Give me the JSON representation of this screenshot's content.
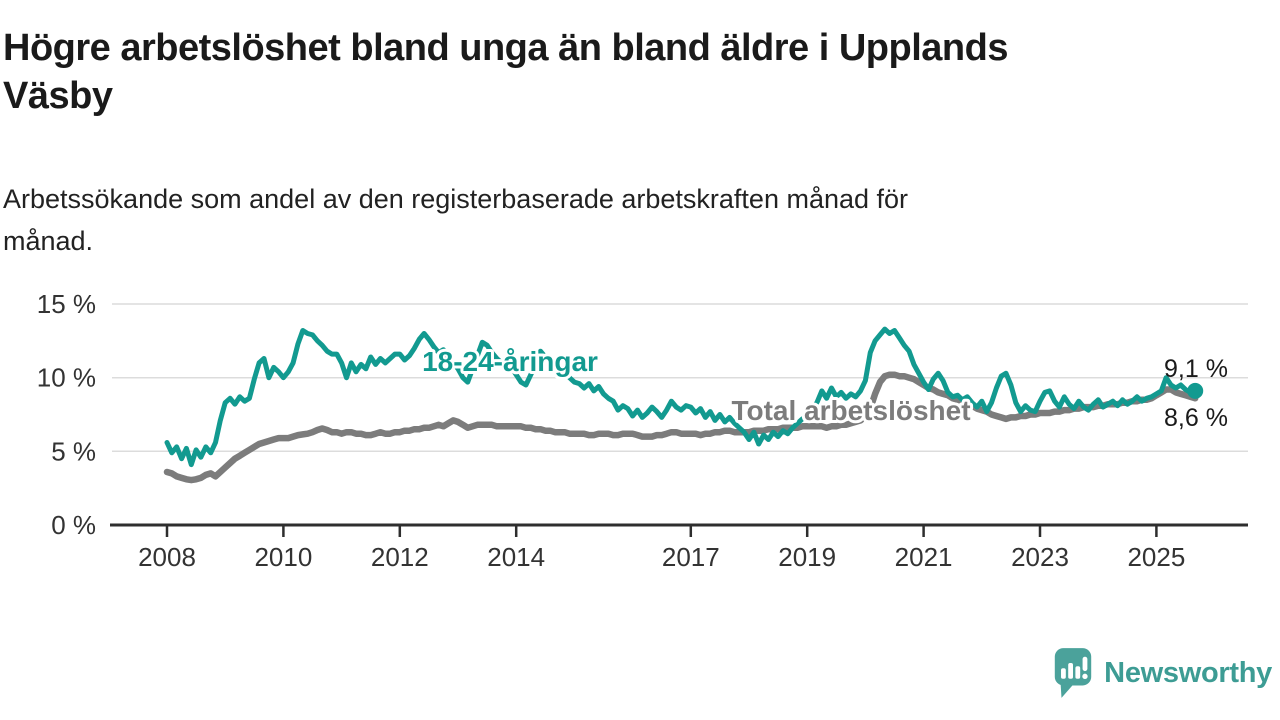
{
  "title_lines": [
    "Högre arbetslöshet bland unga än bland äldre i Upplands",
    "Väsby"
  ],
  "title": "Högre arbetslöshet bland unga än bland äldre i Upplands Väsby",
  "subtitle_lines": [
    "Arbetssökande som andel av den registerbaserade arbetskraften månad för",
    "månad."
  ],
  "branding": {
    "logo_text": "Newsworthy",
    "logo_color": "#3d9c94",
    "icon_color": "#4ba29b"
  },
  "colors": {
    "youth": "#129a90",
    "total": "#7c7c7c",
    "grid": "#dcdcdc",
    "axis": "#2e2e2e",
    "tick_text": "#333333",
    "value_text": "#1a1a1a"
  },
  "chart_data": {
    "type": "line",
    "frequency": "monthly",
    "x_start": "2008-01",
    "x_end": "2025-09",
    "x_tick_labels": [
      "2008",
      "2010",
      "2012",
      "2014",
      "2017",
      "2019",
      "2021",
      "2023",
      "2025"
    ],
    "y_tick_values": [
      0,
      5,
      10,
      15
    ],
    "y_tick_labels": [
      "0 %",
      "5 %",
      "10 %",
      "15 %"
    ],
    "ylim": [
      0,
      15.5
    ],
    "grid": "horizontal",
    "legend": "inline-labels",
    "series": [
      {
        "name": "18-24-åringar",
        "color": "#129a90",
        "end_label": "9,1 %",
        "end_value": 9.1,
        "values": [
          5.6,
          4.9,
          5.3,
          4.5,
          5.2,
          4.1,
          5.1,
          4.6,
          5.3,
          4.9,
          5.6,
          7.1,
          8.3,
          8.6,
          8.2,
          8.7,
          8.4,
          8.6,
          9.9,
          11.0,
          11.3,
          10.0,
          10.7,
          10.4,
          10.0,
          10.4,
          11.0,
          12.3,
          13.2,
          13.0,
          12.9,
          12.5,
          12.2,
          11.8,
          11.6,
          11.6,
          11.0,
          10.0,
          11.0,
          10.4,
          10.9,
          10.6,
          11.4,
          10.9,
          11.3,
          11.0,
          11.3,
          11.6,
          11.6,
          11.2,
          11.5,
          12.0,
          12.6,
          13.0,
          12.6,
          12.1,
          11.7,
          11.9,
          11.4,
          11.0,
          10.6,
          10.0,
          9.7,
          10.6,
          11.5,
          12.4,
          12.2,
          11.7,
          11.3,
          11.0,
          11.2,
          10.7,
          10.2,
          9.7,
          9.5,
          10.2,
          10.9,
          11.8,
          11.4,
          11.0,
          10.6,
          10.3,
          10.5,
          10.0,
          9.7,
          9.6,
          9.3,
          9.6,
          9.1,
          9.4,
          8.9,
          8.6,
          8.4,
          7.8,
          8.1,
          7.9,
          7.4,
          7.8,
          7.3,
          7.6,
          8.0,
          7.7,
          7.3,
          7.8,
          8.4,
          8.0,
          7.8,
          8.1,
          8.0,
          7.6,
          7.9,
          7.3,
          7.7,
          7.1,
          7.5,
          7.0,
          7.3,
          6.9,
          6.6,
          6.3,
          5.8,
          6.3,
          5.5,
          6.1,
          5.8,
          6.3,
          6.0,
          6.4,
          6.2,
          6.6,
          6.9,
          7.2,
          7.4,
          7.9,
          8.3,
          9.1,
          8.6,
          9.3,
          8.7,
          9.0,
          8.6,
          8.9,
          8.7,
          9.1,
          9.8,
          11.7,
          12.5,
          12.9,
          13.3,
          13.0,
          13.2,
          12.7,
          12.2,
          11.8,
          10.9,
          10.3,
          9.7,
          9.2,
          9.9,
          10.3,
          9.8,
          9.0,
          8.7,
          8.8,
          8.5,
          8.7,
          8.3,
          8.0,
          8.4,
          7.7,
          8.3,
          9.3,
          10.1,
          10.3,
          9.5,
          8.3,
          7.7,
          8.1,
          7.8,
          7.7,
          8.4,
          9.0,
          9.1,
          8.4,
          8.0,
          8.7,
          8.2,
          7.9,
          8.4,
          8.0,
          7.8,
          8.2,
          8.5,
          8.0,
          8.2,
          8.4,
          8.1,
          8.5,
          8.2,
          8.4,
          8.7,
          8.4,
          8.6,
          8.7,
          8.9,
          9.1,
          10.0,
          9.5,
          9.3,
          9.5,
          9.2,
          9.0,
          9.1
        ]
      },
      {
        "name": "Total arbetslöshet",
        "color": "#7c7c7c",
        "end_label": "8,6 %",
        "end_value": 8.6,
        "values": [
          3.6,
          3.5,
          3.3,
          3.2,
          3.1,
          3.05,
          3.1,
          3.2,
          3.4,
          3.5,
          3.3,
          3.6,
          3.9,
          4.2,
          4.5,
          4.7,
          4.9,
          5.1,
          5.3,
          5.5,
          5.6,
          5.7,
          5.8,
          5.9,
          5.9,
          5.9,
          6.0,
          6.1,
          6.15,
          6.2,
          6.3,
          6.45,
          6.55,
          6.45,
          6.3,
          6.3,
          6.2,
          6.3,
          6.3,
          6.2,
          6.2,
          6.1,
          6.1,
          6.2,
          6.3,
          6.2,
          6.2,
          6.3,
          6.3,
          6.4,
          6.4,
          6.5,
          6.5,
          6.6,
          6.6,
          6.7,
          6.8,
          6.7,
          6.9,
          7.1,
          7.0,
          6.8,
          6.6,
          6.7,
          6.8,
          6.8,
          6.8,
          6.8,
          6.7,
          6.7,
          6.7,
          6.7,
          6.7,
          6.7,
          6.6,
          6.6,
          6.5,
          6.5,
          6.4,
          6.4,
          6.3,
          6.3,
          6.3,
          6.2,
          6.2,
          6.2,
          6.2,
          6.1,
          6.1,
          6.2,
          6.2,
          6.2,
          6.1,
          6.1,
          6.2,
          6.2,
          6.2,
          6.1,
          6.0,
          6.0,
          6.0,
          6.1,
          6.1,
          6.2,
          6.3,
          6.3,
          6.2,
          6.2,
          6.2,
          6.2,
          6.1,
          6.2,
          6.2,
          6.3,
          6.3,
          6.4,
          6.4,
          6.3,
          6.3,
          6.3,
          6.3,
          6.4,
          6.4,
          6.4,
          6.5,
          6.5,
          6.5,
          6.6,
          6.6,
          6.6,
          6.6,
          6.7,
          6.7,
          6.7,
          6.7,
          6.7,
          6.6,
          6.7,
          6.7,
          6.8,
          6.8,
          6.9,
          7.0,
          7.1,
          7.4,
          7.9,
          8.9,
          9.7,
          10.1,
          10.2,
          10.2,
          10.1,
          10.1,
          10.0,
          9.9,
          9.7,
          9.5,
          9.3,
          9.2,
          9.0,
          8.9,
          8.8,
          8.6,
          8.5,
          8.4,
          8.2,
          8.1,
          7.9,
          7.8,
          7.7,
          7.5,
          7.4,
          7.3,
          7.2,
          7.3,
          7.3,
          7.4,
          7.4,
          7.5,
          7.5,
          7.6,
          7.6,
          7.6,
          7.7,
          7.7,
          7.8,
          7.8,
          7.9,
          7.9,
          8.0,
          8.0,
          8.0,
          8.1,
          8.1,
          8.2,
          8.2,
          8.2,
          8.3,
          8.3,
          8.4,
          8.4,
          8.5,
          8.5,
          8.6,
          8.8,
          9.0,
          9.2,
          9.2,
          9.0,
          8.9,
          8.8,
          8.7,
          8.6
        ]
      }
    ]
  }
}
